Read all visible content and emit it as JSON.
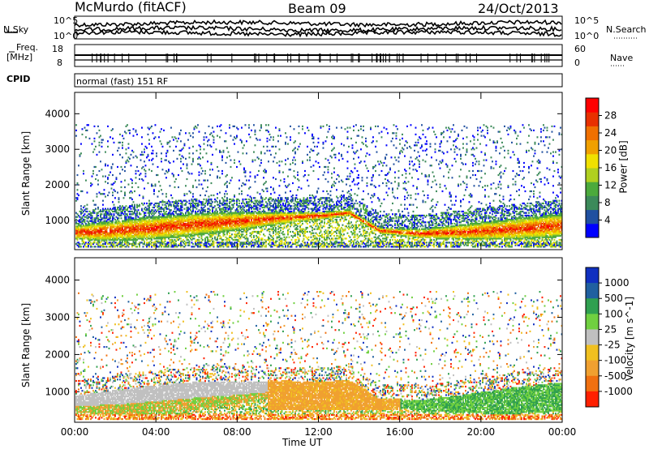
{
  "header": {
    "station": "McMurdo (fitACF)",
    "beam": "Beam 09",
    "date": "24/Oct/2013"
  },
  "top_panels": {
    "nsky_label": "N.Sky",
    "nsearch_label": "N.Search",
    "noise_ticks": [
      "10^5",
      "10^0"
    ],
    "freq_label_line1": "Freq.",
    "freq_label_line2": "[MHz]",
    "freq_ticks": [
      "18",
      "8"
    ],
    "nave_label": "Nave",
    "nave_ticks": [
      "60",
      "0"
    ],
    "cpid_label": "CPID",
    "cpid_text": "normal (fast) 151 RF"
  },
  "chart_data": [
    {
      "type": "heatmap",
      "title": "",
      "ylabel": "Slant Range [km]",
      "xlabel": "",
      "ylim": [
        180,
        4600
      ],
      "y_ticks": [
        "1000",
        "2000",
        "3000",
        "4000"
      ],
      "colorbar": {
        "label": "Power [dB]",
        "range": [
          0,
          32
        ],
        "ticks": [
          "4",
          "8",
          "12",
          "16",
          "20",
          "24",
          "28"
        ],
        "colors": [
          "#0000ff",
          "#2050a0",
          "#3c8a5a",
          "#4caa3c",
          "#b0d020",
          "#f0e000",
          "#f0a000",
          "#f07000",
          "#e83000",
          "#ff0000"
        ]
      },
      "description_values": {
        "main_band_center_km": [
          650,
          700,
          780,
          880,
          960,
          1050,
          1120,
          1200,
          700,
          620,
          660,
          720,
          850
        ],
        "main_band_times_hr": [
          0,
          2,
          4,
          6,
          8,
          10,
          12,
          13.5,
          15,
          17,
          19,
          21,
          24
        ]
      }
    },
    {
      "type": "heatmap",
      "title": "",
      "ylabel": "Slant Range [km]",
      "xlabel": "Time UT",
      "ylim": [
        180,
        4600
      ],
      "y_ticks": [
        "1000",
        "2000",
        "3000",
        "4000"
      ],
      "x_ticks": [
        "00:00",
        "04:00",
        "08:00",
        "12:00",
        "16:00",
        "20:00",
        "00:00"
      ],
      "colorbar": {
        "label": "Velocity [m s^-1]",
        "ticks": [
          "1000",
          "500",
          "100",
          "25",
          "-25",
          "-100",
          "-500",
          "-1000"
        ],
        "colors": [
          "#1030c0",
          "#2060a0",
          "#30a050",
          "#70d040",
          "#c0c0c0",
          "#f0c020",
          "#f0a030",
          "#f07010",
          "#ff2000"
        ]
      }
    }
  ]
}
